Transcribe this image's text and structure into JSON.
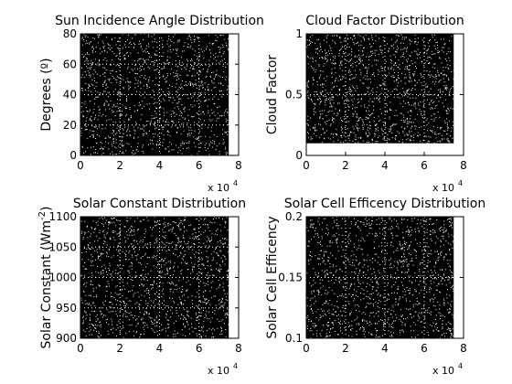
{
  "figure": {
    "background": "#ffffff",
    "plot_background": "#000000",
    "point_color": "#ffffff",
    "grid_color": "#ffffff"
  },
  "chart_data": [
    {
      "type": "scatter",
      "title": "Sun Incidence Angle Distribution",
      "xlabel": "",
      "ylabel": "Degrees (º)",
      "xlim": [
        0,
        80000
      ],
      "ylim": [
        0,
        80
      ],
      "x_exponent_label": "x 10",
      "x_exponent": "4",
      "xticks": [
        0,
        20000,
        40000,
        60000,
        80000
      ],
      "xtick_labels": [
        "0",
        "2",
        "4",
        "6",
        "8"
      ],
      "yticks": [
        0,
        20,
        40,
        60,
        80
      ],
      "ytick_labels": [
        "0",
        "20",
        "40",
        "60",
        "80"
      ],
      "grid": true,
      "legend": "none",
      "series": [
        {
          "x_range": [
            1,
            75000
          ],
          "y_range": [
            0,
            80
          ],
          "distribution": "uniform random"
        }
      ]
    },
    {
      "type": "scatter",
      "title": "Cloud Factor Distribution",
      "xlabel": "",
      "ylabel": "Cloud Factor",
      "xlim": [
        0,
        80000
      ],
      "ylim": [
        0,
        1
      ],
      "x_exponent_label": "x 10",
      "x_exponent": "4",
      "xticks": [
        0,
        20000,
        40000,
        60000,
        80000
      ],
      "xtick_labels": [
        "0",
        "2",
        "4",
        "6",
        "8"
      ],
      "yticks": [
        0,
        0.5,
        1
      ],
      "ytick_labels": [
        "0",
        "0.5",
        "1"
      ],
      "grid": true,
      "legend": "none",
      "series": [
        {
          "x_range": [
            1,
            75000
          ],
          "y_range": [
            0.1,
            1
          ],
          "distribution": "uniform random"
        }
      ]
    },
    {
      "type": "scatter",
      "title": "Solar Constant Distribution",
      "xlabel": "",
      "ylabel": "Solar Constant (Wm",
      "ylabel_superscript": "-2",
      "ylabel_suffix": ")",
      "xlim": [
        0,
        80000
      ],
      "ylim": [
        900,
        1100
      ],
      "x_exponent_label": "x 10",
      "x_exponent": "4",
      "xticks": [
        0,
        20000,
        40000,
        60000,
        80000
      ],
      "xtick_labels": [
        "0",
        "2",
        "4",
        "6",
        "8"
      ],
      "yticks": [
        900,
        950,
        1000,
        1050,
        1100
      ],
      "ytick_labels": [
        "900",
        "950",
        "1000",
        "1050",
        "1100"
      ],
      "grid": true,
      "legend": "none",
      "series": [
        {
          "x_range": [
            1,
            75000
          ],
          "y_range": [
            900,
            1100
          ],
          "distribution": "uniform random"
        }
      ]
    },
    {
      "type": "scatter",
      "title": "Solar Cell Efficency Distribution",
      "xlabel": "",
      "ylabel": "Solar Cell Efficency",
      "xlim": [
        0,
        80000
      ],
      "ylim": [
        0.1,
        0.2
      ],
      "x_exponent_label": "x 10",
      "x_exponent": "4",
      "xticks": [
        0,
        20000,
        40000,
        60000,
        80000
      ],
      "xtick_labels": [
        "0",
        "2",
        "4",
        "6",
        "8"
      ],
      "yticks": [
        0.1,
        0.15,
        0.2
      ],
      "ytick_labels": [
        "0.1",
        "0.15",
        "0.2"
      ],
      "grid": true,
      "legend": "none",
      "series": [
        {
          "x_range": [
            1,
            75000
          ],
          "y_range": [
            0.1,
            0.2
          ],
          "distribution": "uniform random"
        }
      ]
    }
  ]
}
